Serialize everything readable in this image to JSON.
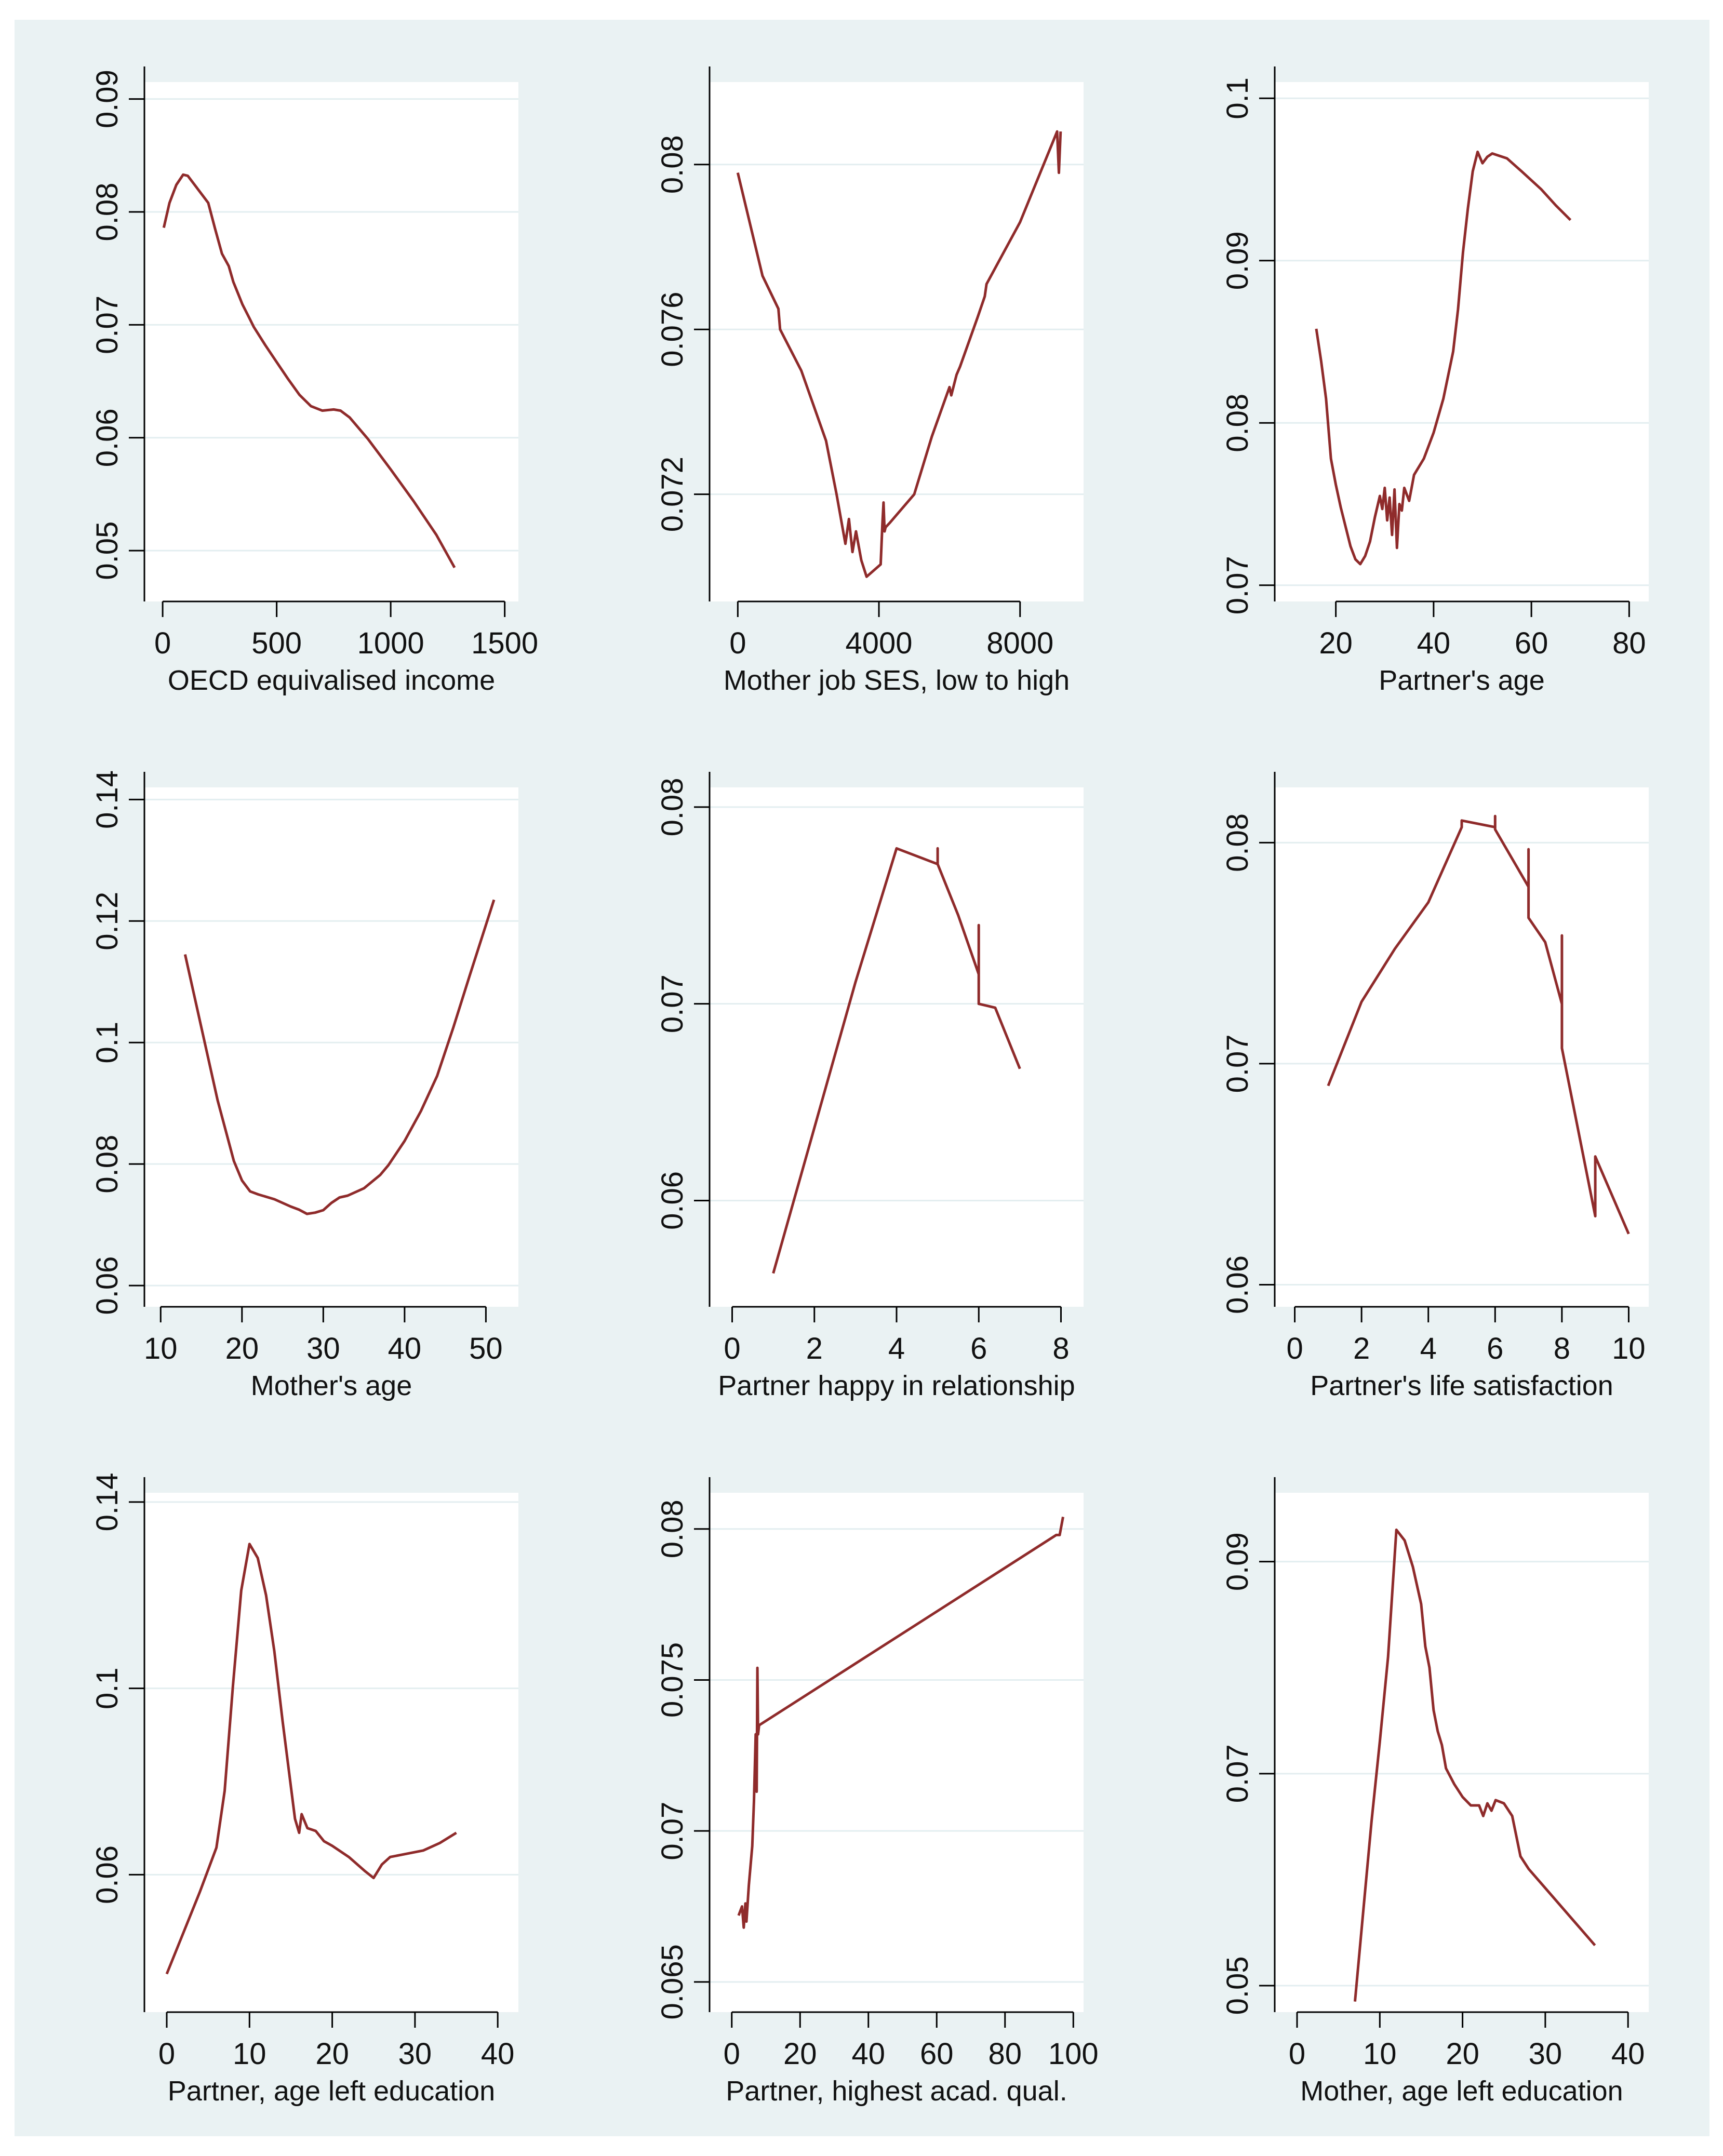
{
  "figure": {
    "background": "#eaf2f3",
    "plot_background": "#ffffff",
    "grid_color": "#e3eef0",
    "axis_color": "#000000",
    "line_color": "#8f2b2b"
  },
  "chart_data": [
    {
      "id": "c1",
      "type": "line",
      "title": "",
      "xlabel": "OECD equivalised income",
      "ylabel": "",
      "xlim": [
        -80,
        1560
      ],
      "ylim": [
        0.0455,
        0.0915
      ],
      "xticks": [
        0,
        500,
        1000,
        1500
      ],
      "xtick_labels": [
        "0",
        "500",
        "1000",
        "1500"
      ],
      "yticks": [
        0.05,
        0.06,
        0.07,
        0.08,
        0.09
      ],
      "ytick_labels": [
        "0.05",
        "0.06",
        "0.07",
        "0.08",
        "0.09"
      ],
      "grid": true,
      "x": [
        5,
        30,
        60,
        90,
        110,
        140,
        170,
        200,
        230,
        260,
        290,
        310,
        330,
        350,
        380,
        400,
        450,
        500,
        550,
        600,
        650,
        700,
        750,
        780,
        820,
        900,
        1000,
        1100,
        1200,
        1280
      ],
      "y": [
        0.0786,
        0.0808,
        0.0824,
        0.0833,
        0.0832,
        0.0824,
        0.0816,
        0.0808,
        0.0785,
        0.0763,
        0.0752,
        0.0738,
        0.0728,
        0.0718,
        0.0706,
        0.0698,
        0.0682,
        0.0667,
        0.0652,
        0.0638,
        0.0628,
        0.0624,
        0.0625,
        0.0624,
        0.0618,
        0.0599,
        0.0572,
        0.0544,
        0.0514,
        0.0485
      ]
    },
    {
      "id": "c2",
      "type": "line",
      "title": "",
      "xlabel": "Mother job SES, low to high",
      "ylabel": "",
      "xlim": [
        -800,
        9800
      ],
      "ylim": [
        0.0694,
        0.082
      ],
      "xticks": [
        0,
        4000,
        8000
      ],
      "xtick_labels": [
        "0",
        "4000",
        "8000"
      ],
      "yticks": [
        0.072,
        0.076,
        0.08
      ],
      "ytick_labels": [
        "0.072",
        "0.076",
        "0.08"
      ],
      "grid": true,
      "x": [
        0,
        700,
        1150,
        1200,
        1800,
        2500,
        2800,
        3050,
        3150,
        3250,
        3350,
        3500,
        3650,
        4050,
        4100,
        4130,
        4160,
        4190,
        4300,
        5000,
        5500,
        6000,
        6050,
        6200,
        6300,
        6800,
        7000,
        7050,
        8000,
        9050,
        9100,
        9150
      ],
      "y": [
        0.0798,
        0.0773,
        0.0765,
        0.076,
        0.075,
        0.0733,
        0.072,
        0.0708,
        0.0714,
        0.0706,
        0.0711,
        0.0704,
        0.07,
        0.0703,
        0.0713,
        0.0718,
        0.0711,
        0.0712,
        0.0713,
        0.072,
        0.0734,
        0.0746,
        0.0744,
        0.0749,
        0.0751,
        0.0763,
        0.0768,
        0.0771,
        0.0786,
        0.0808,
        0.0798,
        0.0808
      ]
    },
    {
      "id": "c3",
      "type": "line",
      "title": "",
      "xlabel": "Partner's age",
      "ylabel": "",
      "xlim": [
        7.5,
        84
      ],
      "ylim": [
        0.069,
        0.101
      ],
      "xticks": [
        20,
        40,
        60,
        80
      ],
      "xtick_labels": [
        "20",
        "40",
        "60",
        "80"
      ],
      "yticks": [
        0.07,
        0.08,
        0.09,
        0.1
      ],
      "ytick_labels": [
        "0.07",
        "0.08",
        "0.09",
        "0.1"
      ],
      "grid": true,
      "x": [
        16,
        17,
        18,
        19,
        20,
        21,
        22,
        23,
        24,
        25,
        26,
        27,
        28,
        29,
        29.5,
        30,
        30.5,
        31,
        31.5,
        32,
        32.5,
        33,
        33.5,
        34,
        35,
        36,
        38,
        40,
        42,
        44,
        45,
        46,
        47,
        48,
        49,
        50,
        51,
        52,
        53,
        55,
        58,
        62,
        65,
        68
      ],
      "y": [
        0.0858,
        0.0838,
        0.0815,
        0.0778,
        0.0762,
        0.0748,
        0.0736,
        0.0724,
        0.0716,
        0.0713,
        0.0718,
        0.0727,
        0.0742,
        0.0755,
        0.0747,
        0.076,
        0.074,
        0.0754,
        0.0731,
        0.0759,
        0.0723,
        0.075,
        0.0746,
        0.076,
        0.0752,
        0.0768,
        0.0778,
        0.0794,
        0.0815,
        0.0844,
        0.087,
        0.0905,
        0.0932,
        0.0955,
        0.0967,
        0.096,
        0.0964,
        0.0966,
        0.0965,
        0.0963,
        0.0955,
        0.0944,
        0.0934,
        0.0925
      ]
    },
    {
      "id": "c4",
      "type": "line",
      "title": "",
      "xlabel": "Mother's age",
      "ylabel": "",
      "xlim": [
        8,
        54
      ],
      "ylim": [
        0.0565,
        0.142
      ],
      "xticks": [
        10,
        20,
        30,
        40,
        50
      ],
      "xtick_labels": [
        "10",
        "20",
        "30",
        "40",
        "50"
      ],
      "yticks": [
        0.06,
        0.08,
        0.1,
        0.12,
        0.14
      ],
      "ytick_labels": [
        "0.06",
        "0.08",
        "0.1",
        "0.12",
        "0.14"
      ],
      "grid": true,
      "x": [
        13,
        15,
        17,
        19,
        20,
        21,
        22,
        24,
        26,
        27,
        28,
        29,
        30,
        31,
        32,
        33,
        35,
        37,
        38,
        40,
        42,
        44,
        46,
        48,
        51
      ],
      "y": [
        0.1145,
        0.1025,
        0.0905,
        0.0805,
        0.0773,
        0.0755,
        0.075,
        0.0742,
        0.073,
        0.0725,
        0.0718,
        0.072,
        0.0724,
        0.0736,
        0.0745,
        0.0748,
        0.076,
        0.0782,
        0.0798,
        0.0838,
        0.0887,
        0.0945,
        0.1025,
        0.111,
        0.1235
      ]
    },
    {
      "id": "c5",
      "type": "line",
      "title": "",
      "xlabel": "Partner happy in relationship",
      "ylabel": "",
      "xlim": [
        -0.55,
        8.55
      ],
      "ylim": [
        0.0546,
        0.081
      ],
      "xticks": [
        0,
        2,
        4,
        6,
        8
      ],
      "xtick_labels": [
        "0",
        "2",
        "4",
        "6",
        "8"
      ],
      "yticks": [
        0.06,
        0.07,
        0.08
      ],
      "ytick_labels": [
        "0.06",
        "0.07",
        "0.08"
      ],
      "grid": true,
      "x": [
        1,
        2,
        3,
        4,
        4.5,
        5,
        5,
        5,
        5.5,
        6,
        6,
        6,
        6.4,
        7
      ],
      "y": [
        0.0563,
        0.0637,
        0.0711,
        0.0779,
        0.0775,
        0.0771,
        0.0779,
        0.0771,
        0.0745,
        0.0715,
        0.074,
        0.07,
        0.0698,
        0.0667
      ]
    },
    {
      "id": "c6",
      "type": "line",
      "title": "",
      "xlabel": "Partner's life satisfaction",
      "ylabel": "",
      "xlim": [
        -0.6,
        10.6
      ],
      "ylim": [
        0.059,
        0.0825
      ],
      "xticks": [
        0,
        2,
        4,
        6,
        8,
        10
      ],
      "xtick_labels": [
        "0",
        "2",
        "4",
        "6",
        "8",
        "10"
      ],
      "yticks": [
        0.06,
        0.07,
        0.08
      ],
      "ytick_labels": [
        "0.06",
        "0.07",
        "0.08"
      ],
      "grid": true,
      "x": [
        1,
        2,
        3,
        4,
        5,
        5,
        6,
        6,
        6,
        7,
        7,
        7,
        7.5,
        8,
        8,
        8,
        9,
        9,
        10
      ],
      "y": [
        0.069,
        0.0728,
        0.0752,
        0.0773,
        0.0807,
        0.081,
        0.0807,
        0.0812,
        0.0806,
        0.078,
        0.0797,
        0.0766,
        0.0755,
        0.0727,
        0.0758,
        0.0707,
        0.0631,
        0.0658,
        0.0623
      ]
    },
    {
      "id": "c7",
      "type": "line",
      "title": "",
      "xlabel": "Partner, age left education",
      "ylabel": "",
      "xlim": [
        -2.7,
        42.5
      ],
      "ylim": [
        0.0305,
        0.142
      ],
      "xticks": [
        0,
        10,
        20,
        30,
        40
      ],
      "xtick_labels": [
        "0",
        "10",
        "20",
        "30",
        "40"
      ],
      "yticks": [
        0.06,
        0.1,
        0.14
      ],
      "ytick_labels": [
        "0.06",
        "0.1",
        "0.14"
      ],
      "grid": true,
      "x": [
        0,
        2,
        4,
        6,
        7,
        8,
        9,
        10,
        11,
        12,
        13,
        14,
        15,
        15.5,
        16,
        16.3,
        17,
        18,
        19,
        20,
        22,
        24,
        25,
        26,
        27,
        29,
        31,
        33,
        35
      ],
      "y": [
        0.0387,
        0.0475,
        0.0563,
        0.0658,
        0.078,
        0.1005,
        0.121,
        0.131,
        0.128,
        0.12,
        0.108,
        0.093,
        0.079,
        0.072,
        0.069,
        0.073,
        0.07,
        0.0694,
        0.0672,
        0.0662,
        0.0638,
        0.0607,
        0.0593,
        0.0622,
        0.0638,
        0.0645,
        0.0652,
        0.0668,
        0.069
      ]
    },
    {
      "id": "c8",
      "type": "line",
      "title": "",
      "xlabel": "Partner, highest acad. qual.",
      "ylabel": "",
      "xlim": [
        -6.5,
        103
      ],
      "ylim": [
        0.064,
        0.0812
      ],
      "xticks": [
        0,
        20,
        40,
        60,
        80,
        100
      ],
      "xtick_labels": [
        "0",
        "20",
        "40",
        "60",
        "80",
        "100"
      ],
      "yticks": [
        0.065,
        0.07,
        0.075,
        0.08
      ],
      "ytick_labels": [
        "0.065",
        "0.07",
        "0.075",
        "0.08"
      ],
      "grid": true,
      "x": [
        2,
        3,
        3.5,
        4,
        4.3,
        5,
        6,
        6.5,
        7,
        7.3,
        7.5,
        7.7,
        8,
        95,
        96,
        97
      ],
      "y": [
        0.0672,
        0.0675,
        0.0668,
        0.0676,
        0.067,
        0.0682,
        0.0695,
        0.071,
        0.0732,
        0.0713,
        0.0754,
        0.0732,
        0.0735,
        0.0798,
        0.0798,
        0.0804
      ]
    },
    {
      "id": "c9",
      "type": "line",
      "title": "",
      "xlabel": "Mother, age left education",
      "ylabel": "",
      "xlim": [
        -2.7,
        42.5
      ],
      "ylim": [
        0.0475,
        0.0965
      ],
      "xticks": [
        0,
        10,
        20,
        30,
        40
      ],
      "xtick_labels": [
        "0",
        "10",
        "20",
        "30",
        "40"
      ],
      "yticks": [
        0.05,
        0.07,
        0.09
      ],
      "ytick_labels": [
        "0.05",
        "0.07",
        "0.09"
      ],
      "grid": true,
      "x": [
        7,
        8,
        9,
        10,
        11,
        12,
        13,
        14,
        15,
        15.5,
        16,
        16.5,
        17,
        17.5,
        18,
        19,
        20,
        21,
        22,
        22.5,
        23,
        23.5,
        24,
        25,
        26,
        27,
        28,
        30,
        33,
        36
      ],
      "y": [
        0.0485,
        0.057,
        0.0655,
        0.073,
        0.081,
        0.093,
        0.092,
        0.0895,
        0.086,
        0.082,
        0.08,
        0.076,
        0.074,
        0.0727,
        0.0705,
        0.069,
        0.0678,
        0.067,
        0.067,
        0.066,
        0.0672,
        0.0665,
        0.0675,
        0.0672,
        0.066,
        0.0622,
        0.061,
        0.0592,
        0.0565,
        0.0538
      ]
    }
  ]
}
